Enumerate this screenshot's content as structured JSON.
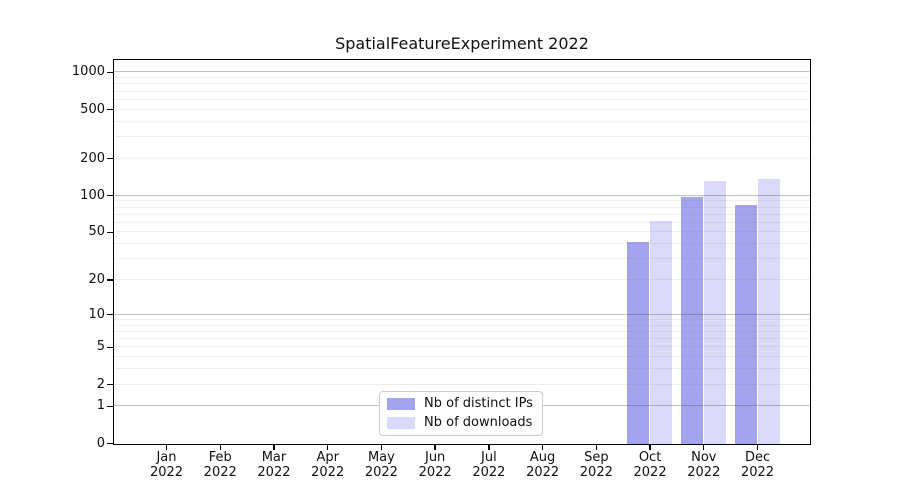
{
  "title": "SpatialFeatureExperiment 2022",
  "chart_data": {
    "type": "bar",
    "scale": "log10(1+x)",
    "grid": true,
    "year": "2022",
    "categories": [
      "Jan",
      "Feb",
      "Mar",
      "Apr",
      "May",
      "Jun",
      "Jul",
      "Aug",
      "Sep",
      "Oct",
      "Nov",
      "Dec"
    ],
    "series": [
      {
        "key": "distinct-ips",
        "name": "Nb of distinct IPs",
        "color": "#a4a4ee",
        "values": [
          0,
          0,
          0,
          0,
          0,
          0,
          0,
          0,
          0,
          42,
          98,
          84
        ]
      },
      {
        "key": "downloads",
        "name": "Nb of downloads",
        "color": "#dadaf8",
        "values": [
          0,
          0,
          0,
          0,
          0,
          0,
          0,
          0,
          0,
          63,
          134,
          137
        ]
      }
    ],
    "y_ticks": [
      0,
      1,
      2,
      5,
      10,
      20,
      50,
      100,
      200,
      500,
      1000
    ],
    "y_major_gridlines": [
      1,
      10,
      100,
      1000
    ],
    "ylim": [
      0,
      1300
    ],
    "legend_position": "lower center"
  }
}
